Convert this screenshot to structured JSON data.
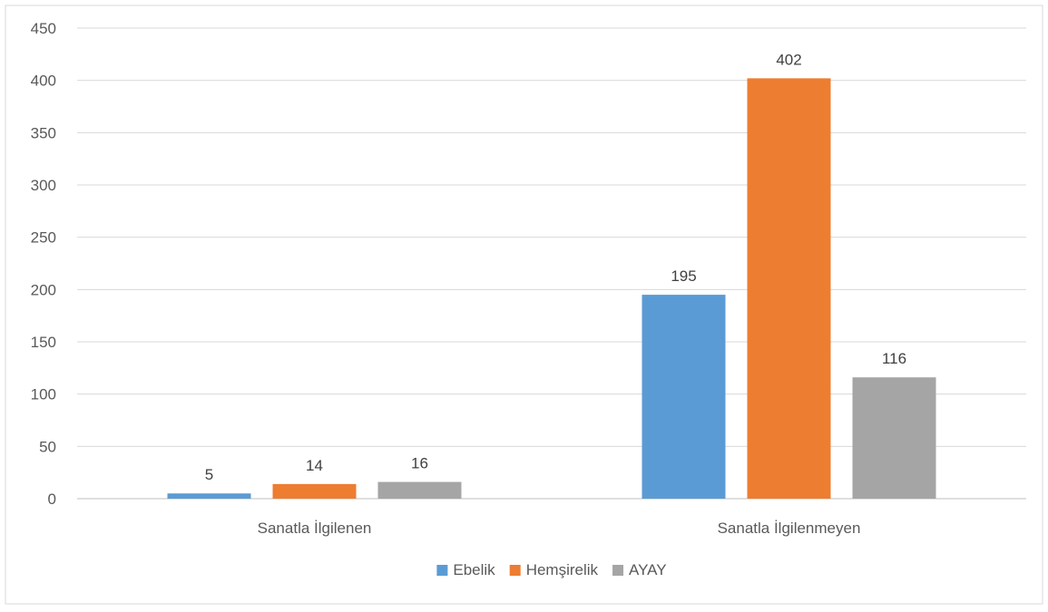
{
  "chart_data": {
    "type": "bar",
    "title": "",
    "xlabel": "",
    "ylabel": "",
    "categories": [
      "Sanatla İlgilenen",
      "Sanatla İlgilenmeyen"
    ],
    "series": [
      {
        "name": "Ebelik",
        "values": [
          5,
          195
        ],
        "color": "#5B9BD5"
      },
      {
        "name": "Hemşirelik",
        "values": [
          14,
          402
        ],
        "color": "#ED7D31"
      },
      {
        "name": "AYAY",
        "values": [
          16,
          116
        ],
        "color": "#A5A5A5"
      }
    ],
    "ylim": [
      0,
      450
    ],
    "yticks": [
      0,
      50,
      100,
      150,
      200,
      250,
      300,
      350,
      400,
      450
    ],
    "grid": true,
    "legend_position": "bottom",
    "data_labels": true
  }
}
